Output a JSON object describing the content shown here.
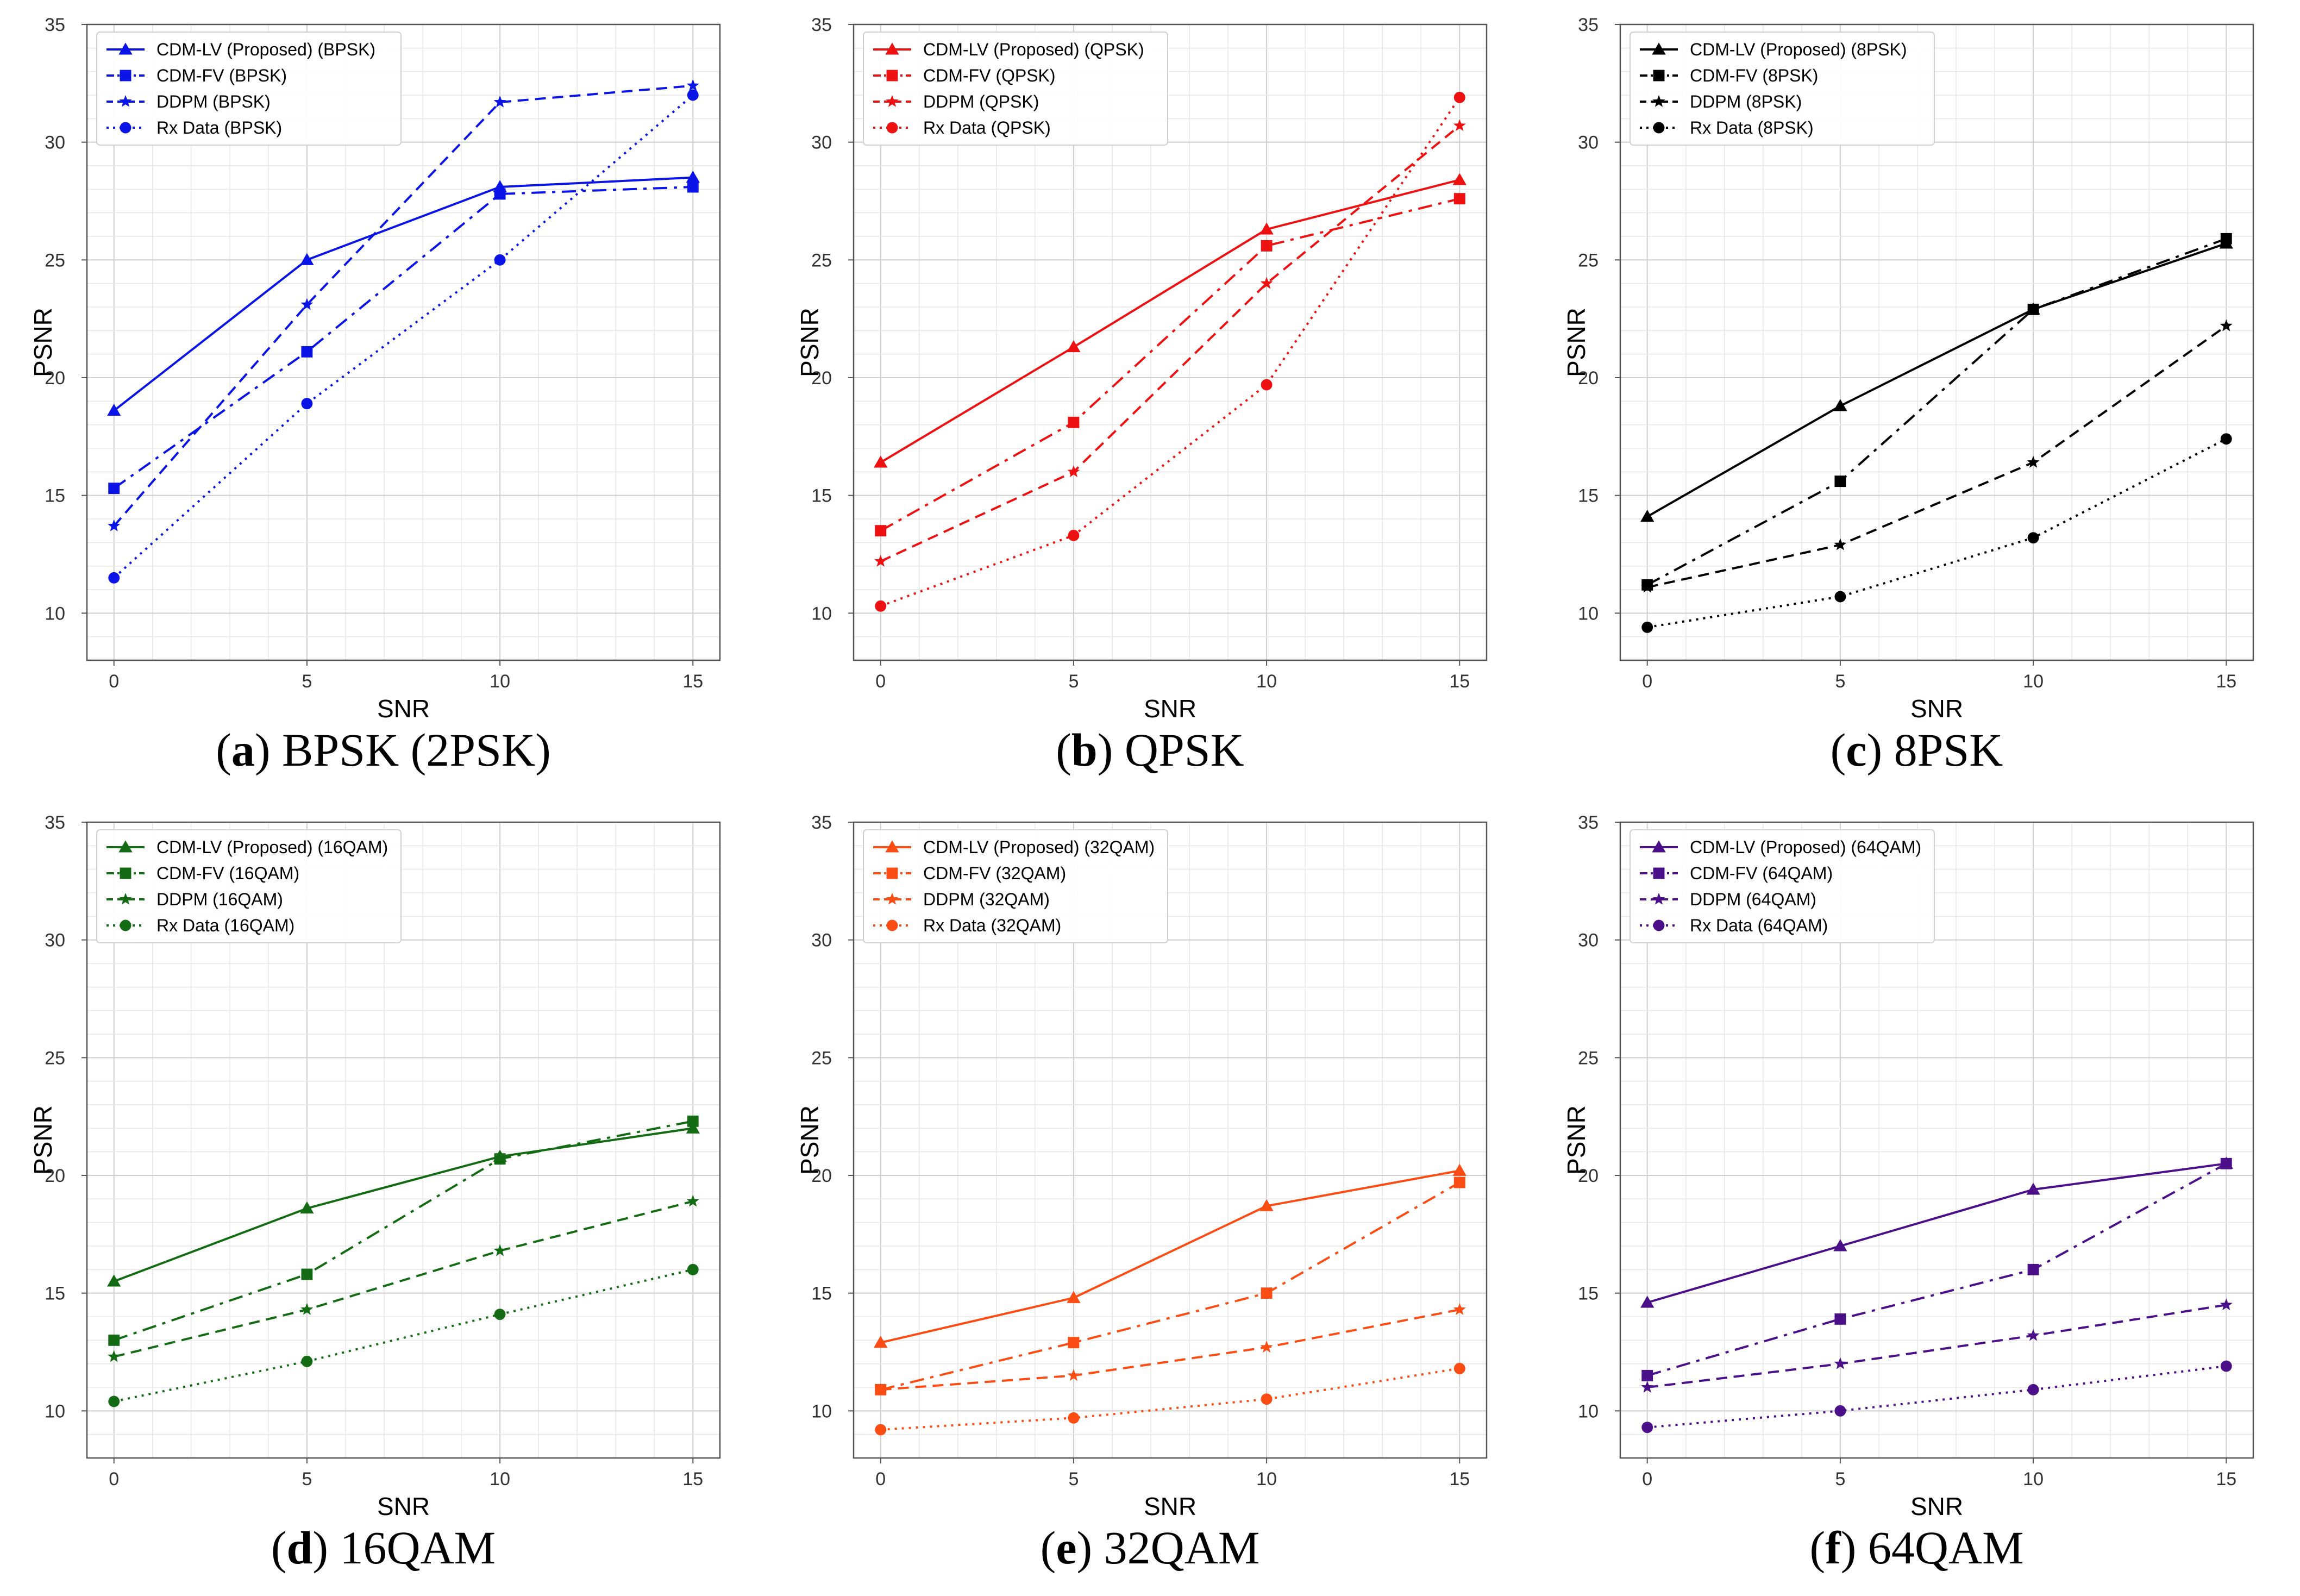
{
  "chart_data": [
    {
      "type": "line",
      "id": "a",
      "color": "#0a14e6",
      "caption_letter": "a",
      "caption_text": "BPSK (2PSK)",
      "xlabel": "SNR",
      "ylabel": "PSNR",
      "x": [
        0,
        5,
        10,
        15
      ],
      "xticks": [
        "0",
        "5",
        "10",
        "15"
      ],
      "ylim": [
        8,
        35
      ],
      "yticks": [
        "10",
        "15",
        "20",
        "25",
        "30",
        "35"
      ],
      "grid": true,
      "legend_position": "top-left",
      "series": [
        {
          "name": "CDM-LV (Proposed) (BPSK)",
          "marker": "triangle",
          "dash": "solid",
          "values": [
            18.6,
            25.0,
            28.1,
            28.5
          ]
        },
        {
          "name": "CDM-FV (BPSK)",
          "marker": "square",
          "dash": "dashdot",
          "values": [
            15.3,
            21.1,
            27.8,
            28.1
          ]
        },
        {
          "name": "DDPM (BPSK)",
          "marker": "star",
          "dash": "dashed",
          "values": [
            13.7,
            23.1,
            31.7,
            32.4
          ]
        },
        {
          "name": "Rx Data (BPSK)",
          "marker": "circle",
          "dash": "dotted",
          "values": [
            11.5,
            18.9,
            25.0,
            32.0
          ]
        }
      ]
    },
    {
      "type": "line",
      "id": "b",
      "color": "#ee1111",
      "caption_letter": "b",
      "caption_text": "QPSK",
      "xlabel": "SNR",
      "ylabel": "PSNR",
      "x": [
        0,
        5,
        10,
        15
      ],
      "xticks": [
        "0",
        "5",
        "10",
        "15"
      ],
      "ylim": [
        8,
        35
      ],
      "yticks": [
        "10",
        "15",
        "20",
        "25",
        "30",
        "35"
      ],
      "grid": true,
      "legend_position": "top-left",
      "series": [
        {
          "name": "CDM-LV (Proposed) (QPSK)",
          "marker": "triangle",
          "dash": "solid",
          "values": [
            16.4,
            21.3,
            26.3,
            28.4
          ]
        },
        {
          "name": "CDM-FV (QPSK)",
          "marker": "square",
          "dash": "dashdot",
          "values": [
            13.5,
            18.1,
            25.6,
            27.6
          ]
        },
        {
          "name": "DDPM (QPSK)",
          "marker": "star",
          "dash": "dashed",
          "values": [
            12.2,
            16.0,
            24.0,
            30.7
          ]
        },
        {
          "name": "Rx Data (QPSK)",
          "marker": "circle",
          "dash": "dotted",
          "values": [
            10.3,
            13.3,
            19.7,
            31.9
          ]
        }
      ]
    },
    {
      "type": "line",
      "id": "c",
      "color": "#000000",
      "caption_letter": "c",
      "caption_text": "8PSK",
      "xlabel": "SNR",
      "ylabel": "PSNR",
      "x": [
        0,
        5,
        10,
        15
      ],
      "xticks": [
        "0",
        "5",
        "10",
        "15"
      ],
      "ylim": [
        8,
        35
      ],
      "yticks": [
        "10",
        "15",
        "20",
        "25",
        "30",
        "35"
      ],
      "grid": true,
      "legend_position": "top-left",
      "series": [
        {
          "name": "CDM-LV (Proposed) (8PSK)",
          "marker": "triangle",
          "dash": "solid",
          "values": [
            14.1,
            18.8,
            22.9,
            25.7
          ]
        },
        {
          "name": "CDM-FV (8PSK)",
          "marker": "square",
          "dash": "dashdot",
          "values": [
            11.2,
            15.6,
            22.9,
            25.9
          ]
        },
        {
          "name": "DDPM (8PSK)",
          "marker": "star",
          "dash": "dashed",
          "values": [
            11.1,
            12.9,
            16.4,
            22.2
          ]
        },
        {
          "name": "Rx Data (8PSK)",
          "marker": "circle",
          "dash": "dotted",
          "values": [
            9.4,
            10.7,
            13.2,
            17.4
          ]
        }
      ]
    },
    {
      "type": "line",
      "id": "d",
      "color": "#136b13",
      "caption_letter": "d",
      "caption_text": "16QAM",
      "xlabel": "SNR",
      "ylabel": "PSNR",
      "x": [
        0,
        5,
        10,
        15
      ],
      "xticks": [
        "0",
        "5",
        "10",
        "15"
      ],
      "ylim": [
        8,
        35
      ],
      "yticks": [
        "10",
        "15",
        "20",
        "25",
        "30",
        "35"
      ],
      "grid": true,
      "legend_position": "top-left",
      "series": [
        {
          "name": "CDM-LV (Proposed) (16QAM)",
          "marker": "triangle",
          "dash": "solid",
          "values": [
            15.5,
            18.6,
            20.8,
            22.0
          ]
        },
        {
          "name": "CDM-FV (16QAM)",
          "marker": "square",
          "dash": "dashdot",
          "values": [
            13.0,
            15.8,
            20.7,
            22.3
          ]
        },
        {
          "name": "DDPM (16QAM)",
          "marker": "star",
          "dash": "dashed",
          "values": [
            12.3,
            14.3,
            16.8,
            18.9
          ]
        },
        {
          "name": "Rx Data (16QAM)",
          "marker": "circle",
          "dash": "dotted",
          "values": [
            10.4,
            12.1,
            14.1,
            16.0
          ]
        }
      ]
    },
    {
      "type": "line",
      "id": "e",
      "color": "#fb4c14",
      "caption_letter": "e",
      "caption_text": "32QAM",
      "xlabel": "SNR",
      "ylabel": "PSNR",
      "x": [
        0,
        5,
        10,
        15
      ],
      "xticks": [
        "0",
        "5",
        "10",
        "15"
      ],
      "ylim": [
        8,
        35
      ],
      "yticks": [
        "10",
        "15",
        "20",
        "25",
        "30",
        "35"
      ],
      "grid": true,
      "legend_position": "top-left",
      "series": [
        {
          "name": "CDM-LV (Proposed) (32QAM)",
          "marker": "triangle",
          "dash": "solid",
          "values": [
            12.9,
            14.8,
            18.7,
            20.2
          ]
        },
        {
          "name": "CDM-FV (32QAM)",
          "marker": "square",
          "dash": "dashdot",
          "values": [
            10.9,
            12.9,
            15.0,
            19.7
          ]
        },
        {
          "name": "DDPM (32QAM)",
          "marker": "star",
          "dash": "dashed",
          "values": [
            10.9,
            11.5,
            12.7,
            14.3
          ]
        },
        {
          "name": "Rx Data (32QAM)",
          "marker": "circle",
          "dash": "dotted",
          "values": [
            9.2,
            9.7,
            10.5,
            11.8
          ]
        }
      ]
    },
    {
      "type": "line",
      "id": "f",
      "color": "#4b0f8a",
      "caption_letter": "f",
      "caption_text": "64QAM",
      "xlabel": "SNR",
      "ylabel": "PSNR",
      "x": [
        0,
        5,
        10,
        15
      ],
      "xticks": [
        "0",
        "5",
        "10",
        "15"
      ],
      "ylim": [
        8,
        35
      ],
      "yticks": [
        "10",
        "15",
        "20",
        "25",
        "30",
        "35"
      ],
      "grid": true,
      "legend_position": "top-left",
      "series": [
        {
          "name": "CDM-LV (Proposed) (64QAM)",
          "marker": "triangle",
          "dash": "solid",
          "values": [
            14.6,
            17.0,
            19.4,
            20.5
          ]
        },
        {
          "name": "CDM-FV (64QAM)",
          "marker": "square",
          "dash": "dashdot",
          "values": [
            11.5,
            13.9,
            16.0,
            20.5
          ]
        },
        {
          "name": "DDPM (64QAM)",
          "marker": "star",
          "dash": "dashed",
          "values": [
            11.0,
            12.0,
            13.2,
            14.5
          ]
        },
        {
          "name": "Rx Data (64QAM)",
          "marker": "circle",
          "dash": "dotted",
          "values": [
            9.3,
            10.0,
            10.9,
            11.9
          ]
        }
      ]
    }
  ]
}
